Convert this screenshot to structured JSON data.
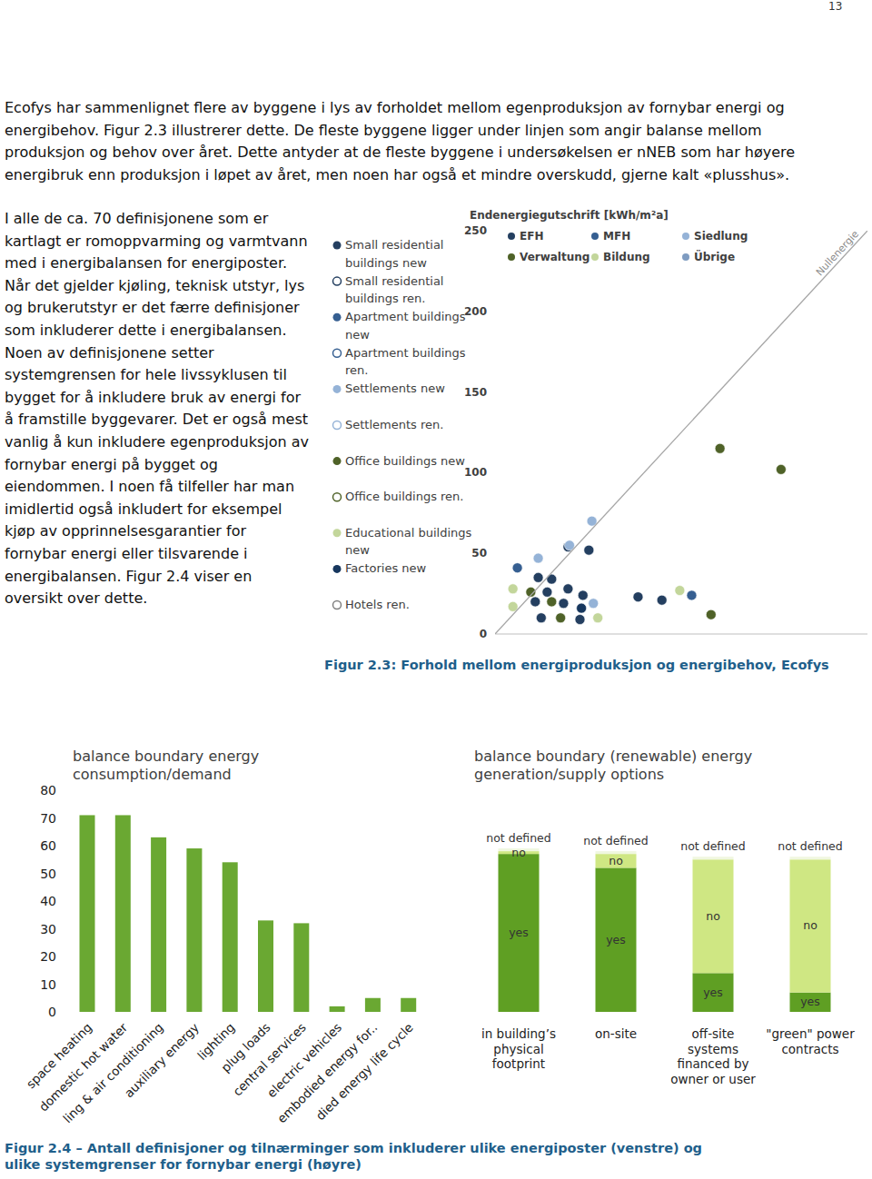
{
  "page_number": "13",
  "paragraphs": [
    "Ecofys har sammenlignet flere av byggene i lys av forholdet mellom egenproduksjon av fornybar energi og energibehov. Figur 2.3 illustrerer dette. De fleste byggene ligger under linjen som angir balanse mellom produksjon og behov over året. Dette antyder at de fleste byggene i undersøkelsen er nNEB som har høyere energibruk enn produksjon i løpet av året, men noen har også et mindre overskudd, gjerne kalt «plusshus».",
    "I alle de ca. 70 definisjonene som er kartlagt er romoppvarming og varmtvann med i energibalansen for energiposter. Når det gjelder kjøling, teknisk utstyr, lys og brukerutstyr er det færre definisjoner som inkluderer dette i energibalansen. Noen av definisjonene setter systemgrensen for hele livssyklusen til bygget for å inkludere bruk av energi for å framstille byggevarer. Det er også mest vanlig å kun inkludere egenproduksjon av fornybar energi på bygget og eiendommen. I noen få tilfeller har man imidlertid også inkludert for eksempel kjøp av opprinnelsesgarantier for fornybar energi eller tilsvarende i energibalansen. Figur 2.4 viser en oversikt over dette."
  ],
  "captions": [
    "Figur 2.3: Forhold mellom energiproduksjon og energibehov, Ecofys",
    "Figur 2.4 – Antall definisjoner og tilnærminger som inkluderer ulike energiposter (venstre) og ulike systemgrenser for fornybar energi (høyre)"
  ],
  "chart_data": [
    {
      "type": "scatter",
      "y_label": "Endenergiegutschrift [kWh/m²a]",
      "xlim": [
        0,
        250
      ],
      "ylim": [
        0,
        250
      ],
      "yticks": [
        0,
        50,
        100,
        150,
        200,
        250
      ],
      "tick_labels": "y",
      "grid": false,
      "series": [
        {
          "name": "Small residential buildings new",
          "color": "#243f60",
          "marker": "circle",
          "x": [
            49,
            63,
            29,
            38,
            35,
            49,
            59,
            27,
            46,
            31,
            57,
            96,
            112
          ],
          "values": [
            54,
            52,
            35,
            34,
            26,
            28,
            24,
            20,
            19,
            10,
            9,
            23,
            21
          ]
        },
        {
          "name": "Small residential buildings ren.",
          "color": "#243f60",
          "marker": "circle-open",
          "x": [],
          "values": []
        },
        {
          "name": "Apartment buildings new",
          "color": "#365f91",
          "marker": "circle",
          "x": [
            15,
            132
          ],
          "values": [
            41,
            24
          ]
        },
        {
          "name": "Apartment buildings ren.",
          "color": "#365f91",
          "marker": "circle-open",
          "x": [],
          "values": []
        },
        {
          "name": "Settlements new",
          "color": "#95b3d7",
          "marker": "circle",
          "x": [
            65,
            50,
            29,
            66
          ],
          "values": [
            70,
            55,
            47,
            19
          ]
        },
        {
          "name": "Settlements ren.",
          "color": "#95b3d7",
          "marker": "circle-open",
          "x": [],
          "values": []
        },
        {
          "name": "Office buildings new",
          "color": "#4f6228",
          "marker": "circle",
          "x": [
            151,
            192,
            24,
            38,
            44,
            145
          ],
          "values": [
            115,
            102,
            26,
            20,
            10,
            12
          ]
        },
        {
          "name": "Office buildings ren.",
          "color": "#4f6228",
          "marker": "circle-open",
          "x": [],
          "values": []
        },
        {
          "name": "Educational buildings new",
          "color": "#c3d69b",
          "marker": "circle",
          "x": [
            12,
            12,
            124,
            69
          ],
          "values": [
            28,
            17,
            27,
            10
          ]
        },
        {
          "name": "Factories new",
          "color": "#17375e",
          "marker": "circle",
          "x": [
            58
          ],
          "values": [
            16
          ]
        },
        {
          "name": "Hotels ren.",
          "color": "#7f7f7f",
          "marker": "circle-open",
          "x": [],
          "values": []
        },
        {
          "name": "Nullenergie",
          "type": "line",
          "color": "#a6a6a6",
          "line_style": "solid",
          "x": [
            0,
            250
          ],
          "values": [
            0,
            250
          ]
        }
      ],
      "annotations": [
        {
          "text": "EFH",
          "color": "#243f60"
        },
        {
          "text": "MFH",
          "color": "#365f91"
        },
        {
          "text": "Siedlung",
          "color": "#95b3d7"
        },
        {
          "text": "Verwaltung",
          "color": "#4f6228"
        },
        {
          "text": "Bildung",
          "color": "#c3d69b"
        },
        {
          "text": "Übrige",
          "color": "#7f9cc1"
        }
      ]
    },
    {
      "type": "bar",
      "title": "balance boundary energy\nconsumption/demand",
      "categories": [
        "space heating",
        "domestic hot water",
        "ling & air conditioning",
        "auxiliary energy",
        "lighting",
        "plug loads",
        "central services",
        "electric vehicles",
        "embodied energy for..",
        "died energy life cycle"
      ],
      "values": [
        71,
        71,
        63,
        59,
        54,
        33,
        32,
        2,
        5,
        5
      ],
      "color": "#6aa832",
      "ylim": [
        0,
        80
      ],
      "yticks": [
        0,
        10,
        20,
        30,
        40,
        50,
        60,
        70,
        80
      ],
      "grid": false
    },
    {
      "type": "bar",
      "title": "balance boundary (renewable) energy\ngeneration/supply options",
      "stacked": true,
      "tick_labels": "x",
      "categories": [
        "in building’s\nphysical\nfootprint",
        "on-site",
        "off-site\nsystems\nfinanced by\nowner or user",
        "\"green\" power\ncontracts"
      ],
      "ylim": [
        0,
        80
      ],
      "series": [
        {
          "name": "yes",
          "color": "#5f9f23",
          "values": [
            57,
            52,
            14,
            7
          ]
        },
        {
          "name": "no",
          "color": "#cfe783",
          "values": [
            1,
            5,
            41,
            48
          ]
        },
        {
          "name": "not defined",
          "color": "#f0f7e0",
          "values": [
            1,
            1,
            1,
            1
          ]
        }
      ]
    }
  ]
}
